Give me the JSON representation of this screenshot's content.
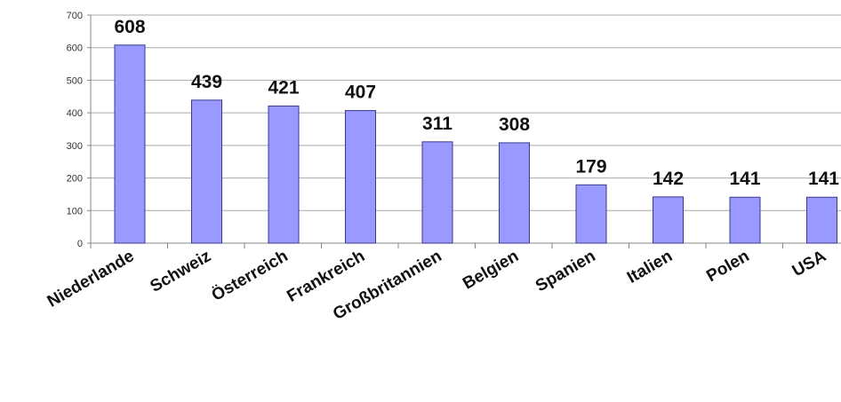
{
  "chart_data": {
    "type": "bar",
    "categories": [
      "Niederlande",
      "Schweiz",
      "Österreich",
      "Frankreich",
      "Großbritannien",
      "Belgien",
      "Spanien",
      "Italien",
      "Polen",
      "USA"
    ],
    "values": [
      608,
      439,
      421,
      407,
      311,
      308,
      179,
      142,
      141,
      141
    ],
    "ylim": [
      0,
      700
    ],
    "yticks": [
      0,
      100,
      200,
      300,
      400,
      500,
      600,
      700
    ],
    "grid": true,
    "legend": "none",
    "colors": {
      "bar_fill": "#9999ff",
      "bar_stroke": "#3a3a8c",
      "grid": "#aaaaaa",
      "axis": "#888888",
      "text": "#111111"
    }
  }
}
